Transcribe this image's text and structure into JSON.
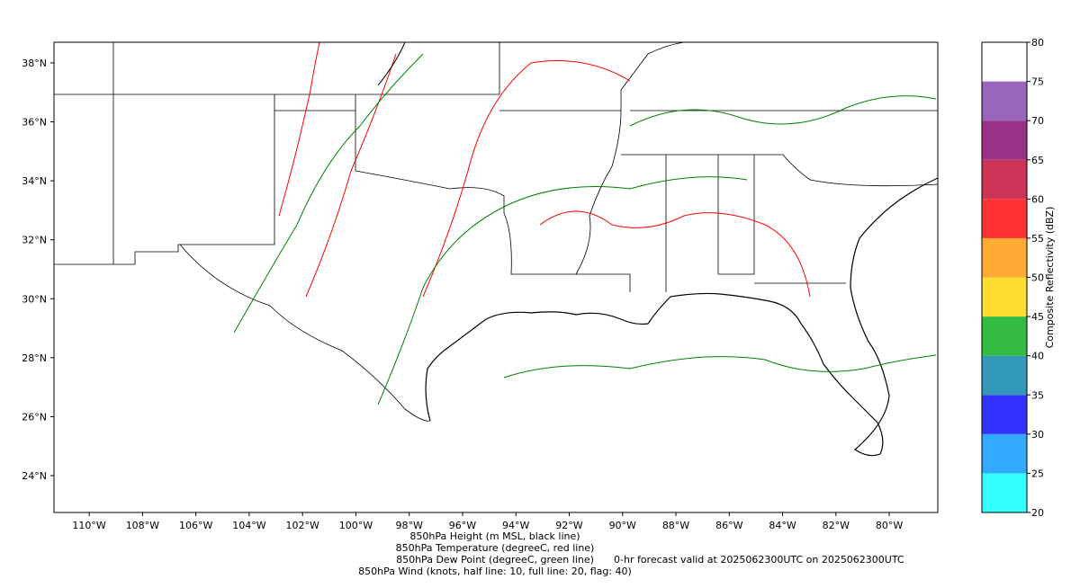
{
  "map": {
    "xlim": [
      -111.32,
      -78.18
    ],
    "ylim": [
      22.75,
      38.7
    ],
    "xticks": [
      {
        "value": -110,
        "label": "110°W"
      },
      {
        "value": -108,
        "label": "108°W"
      },
      {
        "value": -106,
        "label": "106°W"
      },
      {
        "value": -104,
        "label": "104°W"
      },
      {
        "value": -102,
        "label": "102°W"
      },
      {
        "value": -100,
        "label": "100°W"
      },
      {
        "value": -98,
        "label": "98°W"
      },
      {
        "value": -96,
        "label": "96°W"
      },
      {
        "value": -94,
        "label": "94°W"
      },
      {
        "value": -92,
        "label": "92°W"
      },
      {
        "value": -90,
        "label": "90°W"
      },
      {
        "value": -88,
        "label": "88°W"
      },
      {
        "value": -86,
        "label": "86°W"
      },
      {
        "value": -84,
        "label": "84°W"
      },
      {
        "value": -82,
        "label": "82°W"
      },
      {
        "value": -80,
        "label": "80°W"
      }
    ],
    "yticks": [
      {
        "value": 24,
        "label": "24°N"
      },
      {
        "value": 26,
        "label": "26°N"
      },
      {
        "value": 28,
        "label": "28°N"
      },
      {
        "value": 30,
        "label": "30°N"
      },
      {
        "value": 32,
        "label": "32°N"
      },
      {
        "value": 34,
        "label": "34°N"
      },
      {
        "value": 36,
        "label": "36°N"
      },
      {
        "value": 38,
        "label": "38°N"
      }
    ]
  },
  "colorbar": {
    "label": "Composite Reflectivity (dBZ)",
    "lim": [
      20,
      80
    ],
    "ticks": [
      20,
      25,
      30,
      35,
      40,
      45,
      50,
      55,
      60,
      65,
      70,
      75,
      80
    ],
    "colors": [
      "#33ffff",
      "#33aaff",
      "#3333ff",
      "#3399bb",
      "#33bb44",
      "#ffdd33",
      "#ffaa33",
      "#ff3333",
      "#cc3355",
      "#993388",
      "#9966bb",
      "#ffffff"
    ]
  },
  "captions": [
    {
      "text": "850hPa Height (m MSL, black line)",
      "color": "#000000"
    },
    {
      "text": "850hPa Temperature (degreeC, red line)",
      "color": "#ff0000"
    },
    {
      "text": "850hPa Dew Point (degreeC, green line)",
      "color": "#008000"
    },
    {
      "text": "850hPa Wind (knots, half line: 10, full line: 20, flag: 40)",
      "color": "#808080"
    }
  ],
  "forecast_note": {
    "text": "0-hr forecast valid at 2025062300UTC on 2025062300UTC",
    "color": "#ff0000"
  }
}
